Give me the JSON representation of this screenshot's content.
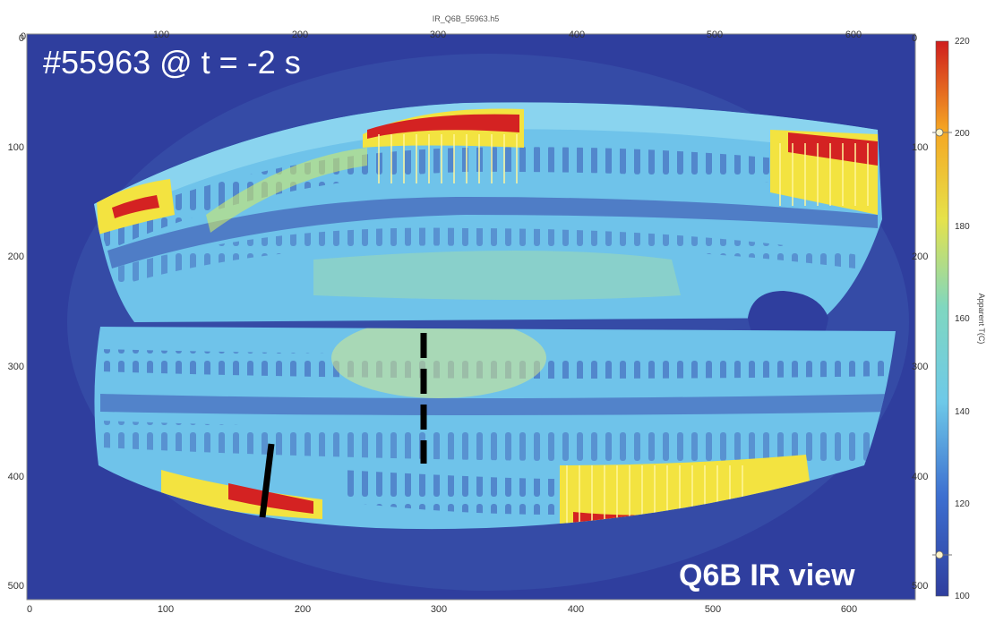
{
  "figure": {
    "file_title": "IR_Q6B_55963.h5",
    "shot_label": "#55963 @ t = -2 s",
    "view_label": "Q6B IR view",
    "x_ticks": [
      "0",
      "100",
      "200",
      "300",
      "400",
      "500",
      "600"
    ],
    "y_ticks": [
      "0",
      "100",
      "200",
      "300",
      "400",
      "500"
    ],
    "colorbar": {
      "title": "Apparent T(C)",
      "ticks": [
        "220",
        "200",
        "180",
        "160",
        "140",
        "120",
        "100"
      ],
      "range": [
        100,
        220
      ],
      "colors": [
        "#2f3e9e",
        "#3d6fd0",
        "#6ec9e8",
        "#7fd7c0",
        "#e6e24a",
        "#f5a623",
        "#cf1d1d"
      ]
    },
    "colors": {
      "background": "#2f3e9e",
      "panel_base": "#6fc3ea",
      "hot": "#d42222",
      "warm": "#f3e340",
      "cold_band": "#3a4fae"
    }
  }
}
